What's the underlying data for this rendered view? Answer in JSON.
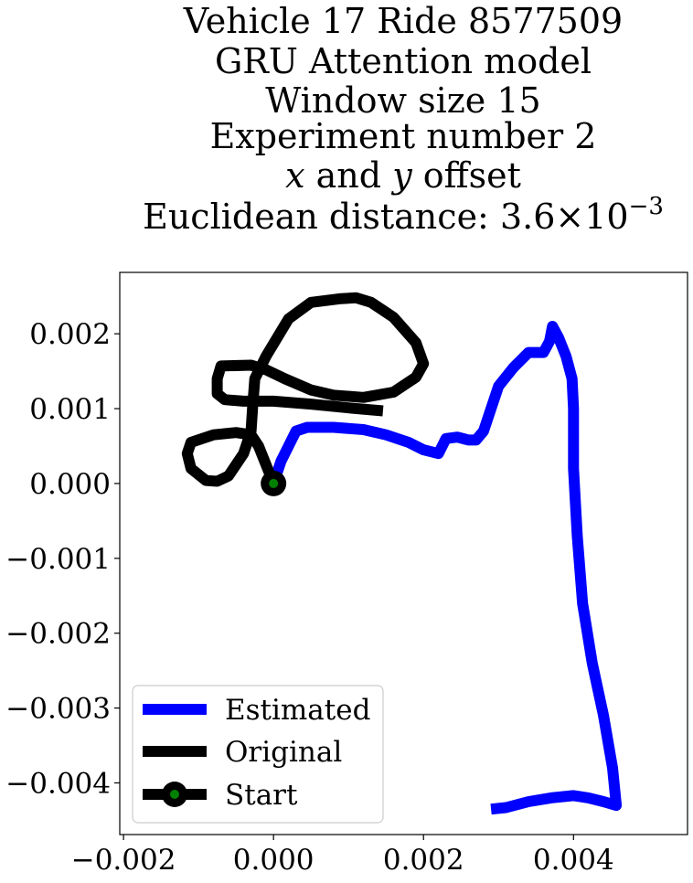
{
  "chart_data": {
    "type": "line",
    "title_lines": [
      "Vehicle 17 Ride 8577509",
      "GRU Attention model",
      "Window size 15",
      "Experiment number 2"
    ],
    "title_axis_line": {
      "x": "x",
      "mid": " and ",
      "y": "y",
      "rest": " offset"
    },
    "title_distance": {
      "prefix": "Euclidean distance: ",
      "mantissa": "3.6",
      "times": "×",
      "base": "10",
      "exponent": "−3"
    },
    "xlim": [
      -0.00205,
      0.00552
    ],
    "ylim": [
      -0.00469,
      0.00282
    ],
    "xticks": [
      {
        "value": -0.002,
        "label": "−0.002"
      },
      {
        "value": 0.0,
        "label": "0.000"
      },
      {
        "value": 0.002,
        "label": "0.002"
      },
      {
        "value": 0.004,
        "label": "0.004"
      }
    ],
    "yticks": [
      {
        "value": 0.002,
        "label": "0.002"
      },
      {
        "value": 0.001,
        "label": "0.001"
      },
      {
        "value": 0.0,
        "label": "0.000"
      },
      {
        "value": -0.001,
        "label": "−0.001"
      },
      {
        "value": -0.002,
        "label": "−0.002"
      },
      {
        "value": -0.003,
        "label": "−0.003"
      },
      {
        "value": -0.004,
        "label": "−0.004"
      }
    ],
    "grid": false,
    "legend_position": "lower-left",
    "series": [
      {
        "name": "Estimated",
        "color": "#0000ff",
        "points": [
          [
            0.0,
            0.0
          ],
          [
            0.0001,
            0.0003
          ],
          [
            0.0002,
            0.0005
          ],
          [
            0.0003,
            0.0007
          ],
          [
            0.00045,
            0.00075
          ],
          [
            0.0008,
            0.00075
          ],
          [
            0.0012,
            0.00072
          ],
          [
            0.0015,
            0.00065
          ],
          [
            0.0018,
            0.00055
          ],
          [
            0.002,
            0.00045
          ],
          [
            0.0022,
            0.0004
          ],
          [
            0.00225,
            0.0005
          ],
          [
            0.0023,
            0.0006
          ],
          [
            0.00245,
            0.00062
          ],
          [
            0.0026,
            0.00058
          ],
          [
            0.0027,
            0.00058
          ],
          [
            0.0028,
            0.0007
          ],
          [
            0.0029,
            0.001
          ],
          [
            0.003,
            0.0013
          ],
          [
            0.0032,
            0.00155
          ],
          [
            0.0034,
            0.00175
          ],
          [
            0.0036,
            0.00175
          ],
          [
            0.00368,
            0.0019
          ],
          [
            0.00372,
            0.0021
          ],
          [
            0.0038,
            0.00195
          ],
          [
            0.0039,
            0.0017
          ],
          [
            0.00398,
            0.0014
          ],
          [
            0.004,
            0.001
          ],
          [
            0.004,
            0.0002
          ],
          [
            0.00405,
            -0.0007
          ],
          [
            0.00412,
            -0.0016
          ],
          [
            0.00425,
            -0.0024
          ],
          [
            0.0044,
            -0.0031
          ],
          [
            0.00452,
            -0.0038
          ],
          [
            0.00457,
            -0.0043
          ],
          [
            0.0044,
            -0.00425
          ],
          [
            0.0042,
            -0.0042
          ],
          [
            0.004,
            -0.00417
          ],
          [
            0.0037,
            -0.0042
          ],
          [
            0.0034,
            -0.00425
          ],
          [
            0.0031,
            -0.00433
          ],
          [
            0.0029,
            -0.00435
          ]
        ]
      },
      {
        "name": "Original",
        "color": "#000000",
        "points": [
          [
            0.0,
            0.0
          ],
          [
            -0.0001,
            0.00025
          ],
          [
            -0.0002,
            0.0005
          ],
          [
            -0.0003,
            0.00065
          ],
          [
            -0.0005,
            0.00068
          ],
          [
            -0.0008,
            0.00065
          ],
          [
            -0.0011,
            0.00055
          ],
          [
            -0.00115,
            0.0004
          ],
          [
            -0.0011,
            0.0002
          ],
          [
            -0.0009,
            4e-05
          ],
          [
            -0.00075,
            3e-05
          ],
          [
            -0.0006,
            0.0001
          ],
          [
            -0.0004,
            0.0004
          ],
          [
            -0.0003,
            0.0007
          ],
          [
            -0.00028,
            0.001
          ],
          [
            -0.00025,
            0.0014
          ],
          [
            -0.0001,
            0.0017
          ],
          [
            0.0002,
            0.0022
          ],
          [
            0.0005,
            0.00242
          ],
          [
            0.0009,
            0.00247
          ],
          [
            0.0011,
            0.00248
          ],
          [
            0.0013,
            0.00242
          ],
          [
            0.0016,
            0.00222
          ],
          [
            0.0019,
            0.00188
          ],
          [
            0.002,
            0.0016
          ],
          [
            0.0019,
            0.00142
          ],
          [
            0.0016,
            0.00122
          ],
          [
            0.0012,
            0.00115
          ],
          [
            0.0008,
            0.00118
          ],
          [
            0.0005,
            0.00125
          ],
          [
            0.00015,
            0.0014
          ],
          [
            -0.0001,
            0.00152
          ],
          [
            -0.0003,
            0.00158
          ],
          [
            -0.0007,
            0.00157
          ],
          [
            -0.00075,
            0.0014
          ],
          [
            -0.00075,
            0.0012
          ],
          [
            -0.00065,
            0.00112
          ],
          [
            -0.0004,
            0.0011
          ],
          [
            0.0,
            0.0011
          ],
          [
            0.0005,
            0.00106
          ],
          [
            0.001,
            0.00101
          ],
          [
            0.00146,
            0.00097
          ]
        ]
      }
    ],
    "start": {
      "name": "Start",
      "x": 0.0,
      "y": 0.0,
      "ring_color": "#000000",
      "center_color": "#008000"
    }
  }
}
